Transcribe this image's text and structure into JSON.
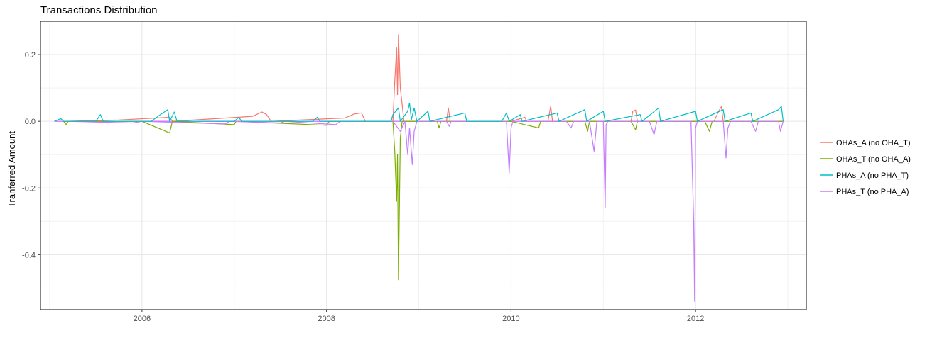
{
  "chart_data": {
    "type": "line",
    "title": "Transactions Distribution",
    "xlabel": "",
    "ylabel": "Tranferred Amount",
    "xlim": [
      2004.9,
      2013.2
    ],
    "ylim": [
      -0.565,
      0.3
    ],
    "x_ticks": [
      2006,
      2008,
      2010,
      2012
    ],
    "x_tick_labels": [
      "2006",
      "2008",
      "2010",
      "2012"
    ],
    "y_ticks": [
      -0.4,
      -0.2,
      0.0,
      0.2
    ],
    "y_tick_labels": [
      "-0.4",
      "-0.2",
      "0.0",
      "0.2"
    ],
    "grid": true,
    "legend_position": "right",
    "series": [
      {
        "name": "OHAs_A (no OHA_T)",
        "color": "#F8766D",
        "points": [
          [
            2005.15,
            0.0
          ],
          [
            2005.75,
            0.004
          ],
          [
            2006.3,
            0.012
          ],
          [
            2006.33,
            0.0
          ],
          [
            2007.2,
            0.015
          ],
          [
            2007.3,
            0.028
          ],
          [
            2007.35,
            0.02
          ],
          [
            2007.4,
            0.0
          ],
          [
            2008.2,
            0.01
          ],
          [
            2008.3,
            0.022
          ],
          [
            2008.38,
            0.025
          ],
          [
            2008.42,
            0.0
          ],
          [
            2008.72,
            0.0
          ],
          [
            2008.74,
            0.12
          ],
          [
            2008.76,
            0.22
          ],
          [
            2008.77,
            0.08
          ],
          [
            2008.78,
            0.26
          ],
          [
            2008.8,
            0.1
          ],
          [
            2008.82,
            0.05
          ],
          [
            2008.84,
            0.0
          ],
          [
            2009.3,
            0.0
          ],
          [
            2009.32,
            0.04
          ],
          [
            2009.34,
            0.0
          ],
          [
            2010.0,
            0.0
          ],
          [
            2010.15,
            0.012
          ],
          [
            2010.17,
            0.0
          ],
          [
            2010.4,
            0.0
          ],
          [
            2010.43,
            0.045
          ],
          [
            2010.45,
            0.0
          ],
          [
            2011.3,
            0.0
          ],
          [
            2011.32,
            0.03
          ],
          [
            2011.35,
            0.034
          ],
          [
            2011.37,
            0.0
          ],
          [
            2012.2,
            0.0
          ],
          [
            2012.25,
            0.03
          ],
          [
            2012.28,
            0.044
          ],
          [
            2012.3,
            0.0
          ],
          [
            2012.95,
            0.0
          ]
        ]
      },
      {
        "name": "OHAs_T (no OHA_A)",
        "color": "#7CAE00",
        "points": [
          [
            2005.15,
            0.0
          ],
          [
            2005.18,
            -0.01
          ],
          [
            2005.2,
            0.0
          ],
          [
            2006.0,
            0.0
          ],
          [
            2006.3,
            -0.035
          ],
          [
            2006.33,
            0.0
          ],
          [
            2007.0,
            -0.01
          ],
          [
            2007.02,
            0.0
          ],
          [
            2008.0,
            -0.012
          ],
          [
            2008.03,
            0.0
          ],
          [
            2008.72,
            0.0
          ],
          [
            2008.74,
            -0.09
          ],
          [
            2008.76,
            -0.24
          ],
          [
            2008.77,
            -0.1
          ],
          [
            2008.78,
            -0.475
          ],
          [
            2008.8,
            -0.05
          ],
          [
            2008.82,
            0.0
          ],
          [
            2009.2,
            0.0
          ],
          [
            2009.22,
            -0.02
          ],
          [
            2009.24,
            0.0
          ],
          [
            2010.0,
            0.0
          ],
          [
            2010.3,
            -0.02
          ],
          [
            2010.32,
            0.0
          ],
          [
            2010.8,
            0.0
          ],
          [
            2010.83,
            -0.03
          ],
          [
            2010.85,
            0.0
          ],
          [
            2011.3,
            0.0
          ],
          [
            2011.35,
            -0.025
          ],
          [
            2011.37,
            0.0
          ],
          [
            2012.1,
            0.0
          ],
          [
            2012.15,
            -0.03
          ],
          [
            2012.18,
            0.0
          ],
          [
            2012.95,
            0.0
          ]
        ]
      },
      {
        "name": "PHAs_A (no PHA_T)",
        "color": "#00BFC4",
        "points": [
          [
            2005.05,
            0.0
          ],
          [
            2005.12,
            0.008
          ],
          [
            2005.15,
            0.0
          ],
          [
            2005.5,
            0.0
          ],
          [
            2005.55,
            0.02
          ],
          [
            2005.58,
            0.0
          ],
          [
            2006.1,
            0.0
          ],
          [
            2006.2,
            0.02
          ],
          [
            2006.28,
            0.035
          ],
          [
            2006.3,
            0.0
          ],
          [
            2006.35,
            0.028
          ],
          [
            2006.38,
            0.0
          ],
          [
            2007.0,
            0.0
          ],
          [
            2007.05,
            0.012
          ],
          [
            2007.08,
            0.0
          ],
          [
            2007.85,
            0.0
          ],
          [
            2007.9,
            0.012
          ],
          [
            2007.93,
            0.0
          ],
          [
            2008.7,
            0.0
          ],
          [
            2008.72,
            0.02
          ],
          [
            2008.75,
            0.03
          ],
          [
            2008.78,
            0.04
          ],
          [
            2008.8,
            0.0
          ],
          [
            2008.88,
            0.03
          ],
          [
            2008.9,
            0.055
          ],
          [
            2008.92,
            0.005
          ],
          [
            2008.95,
            0.04
          ],
          [
            2008.98,
            0.0
          ],
          [
            2009.1,
            0.03
          ],
          [
            2009.12,
            0.0
          ],
          [
            2009.5,
            0.025
          ],
          [
            2009.52,
            0.0
          ],
          [
            2009.9,
            0.0
          ],
          [
            2009.95,
            0.025
          ],
          [
            2009.98,
            0.0
          ],
          [
            2010.1,
            0.02
          ],
          [
            2010.12,
            0.0
          ],
          [
            2010.5,
            0.025
          ],
          [
            2010.52,
            0.0
          ],
          [
            2010.8,
            0.035
          ],
          [
            2010.82,
            0.0
          ],
          [
            2011.0,
            0.03
          ],
          [
            2011.02,
            0.0
          ],
          [
            2011.4,
            0.02
          ],
          [
            2011.42,
            0.0
          ],
          [
            2011.6,
            0.04
          ],
          [
            2011.62,
            0.0
          ],
          [
            2012.0,
            0.03
          ],
          [
            2012.02,
            0.0
          ],
          [
            2012.3,
            0.035
          ],
          [
            2012.32,
            0.0
          ],
          [
            2012.6,
            0.025
          ],
          [
            2012.62,
            0.0
          ],
          [
            2012.9,
            0.035
          ],
          [
            2012.93,
            0.045
          ],
          [
            2012.95,
            0.0
          ]
        ]
      },
      {
        "name": "PHAs_T (no PHA_A)",
        "color": "#C77CFF",
        "points": [
          [
            2005.2,
            0.0
          ],
          [
            2005.9,
            -0.005
          ],
          [
            2006.0,
            0.0
          ],
          [
            2006.9,
            -0.008
          ],
          [
            2006.95,
            0.0
          ],
          [
            2007.5,
            -0.005
          ],
          [
            2007.55,
            0.0
          ],
          [
            2008.1,
            -0.01
          ],
          [
            2008.15,
            0.0
          ],
          [
            2008.72,
            0.0
          ],
          [
            2008.8,
            -0.03
          ],
          [
            2008.85,
            0.0
          ],
          [
            2008.88,
            -0.1
          ],
          [
            2008.9,
            -0.02
          ],
          [
            2008.93,
            -0.13
          ],
          [
            2008.95,
            -0.03
          ],
          [
            2008.98,
            0.0
          ],
          [
            2009.3,
            0.0
          ],
          [
            2009.33,
            -0.015
          ],
          [
            2009.35,
            0.0
          ],
          [
            2009.95,
            0.0
          ],
          [
            2009.98,
            -0.155
          ],
          [
            2010.0,
            -0.02
          ],
          [
            2010.02,
            0.0
          ],
          [
            2010.6,
            0.0
          ],
          [
            2010.65,
            -0.02
          ],
          [
            2010.68,
            0.0
          ],
          [
            2010.85,
            0.0
          ],
          [
            2010.9,
            -0.09
          ],
          [
            2010.93,
            0.0
          ],
          [
            2011.0,
            0.0
          ],
          [
            2011.02,
            -0.26
          ],
          [
            2011.03,
            -0.01
          ],
          [
            2011.05,
            0.0
          ],
          [
            2011.5,
            0.0
          ],
          [
            2011.55,
            -0.04
          ],
          [
            2011.58,
            0.0
          ],
          [
            2011.95,
            0.0
          ],
          [
            2011.98,
            -0.3
          ],
          [
            2011.99,
            -0.54
          ],
          [
            2012.0,
            -0.02
          ],
          [
            2012.02,
            0.0
          ],
          [
            2012.3,
            0.0
          ],
          [
            2012.33,
            -0.11
          ],
          [
            2012.35,
            -0.02
          ],
          [
            2012.38,
            0.0
          ],
          [
            2012.6,
            0.0
          ],
          [
            2012.65,
            -0.03
          ],
          [
            2012.68,
            0.0
          ],
          [
            2012.9,
            0.0
          ],
          [
            2012.92,
            -0.03
          ],
          [
            2012.95,
            0.0
          ]
        ]
      }
    ]
  }
}
